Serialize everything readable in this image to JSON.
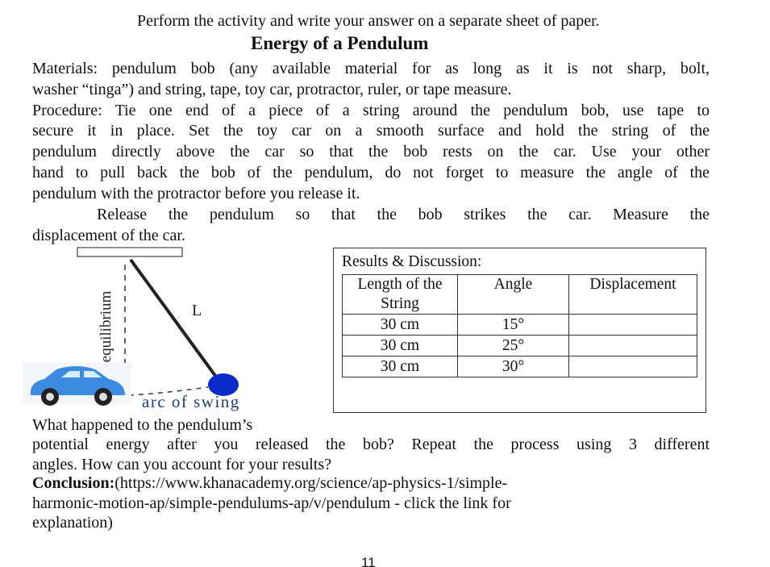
{
  "instruction": "Perform the activity and write your answer on a separate sheet of paper.",
  "title": "Energy of a Pendulum",
  "materials": [
    "Materials: pendulum bob (any available material for as long as it is not sharp, bolt,",
    "washer “tinga”) and string, tape, toy car, protractor, ruler, or tape measure."
  ],
  "procedure": [
    "Procedure: Tie one end of a piece of a string around the pendulum bob, use tape to",
    "secure it in place. Set the toy car on a smooth surface and hold the string of the",
    "pendulum directly above the car so that the bob rests on the car. Use your other",
    "hand to pull back the bob of the pendulum, do not forget to measure the angle of the",
    "pendulum with the protractor before you release it."
  ],
  "release": [
    "Release the pendulum so that the bob strikes the car. Measure the",
    "displacement of the car."
  ],
  "figure": {
    "length_label": "L",
    "equilibrium_label": "equilibrium",
    "arc_label": "arc of swing"
  },
  "results": {
    "title": "Results & Discussion:",
    "table": {
      "header": [
        "Length of the String",
        "Angle",
        "Displacement"
      ],
      "rows": [
        [
          "30 cm",
          "15°"
        ],
        [
          "30 cm",
          "25°"
        ],
        [
          "30 cm",
          "30°"
        ]
      ]
    }
  },
  "question": [
    "What happened to the pendulum’s",
    "potential energy after you released the bob? Repeat the process using 3 different",
    "angles. How can you account for your results?"
  ],
  "conclusion": {
    "label": "Conclusion:",
    "lines": [
      "(https://www.khanacademy.org/science/ap-physics-1/simple-",
      "harmonic-motion-ap/simple-pendulums-ap/v/pendulum - click the link for",
      "explanation)"
    ]
  },
  "page_number": "11"
}
